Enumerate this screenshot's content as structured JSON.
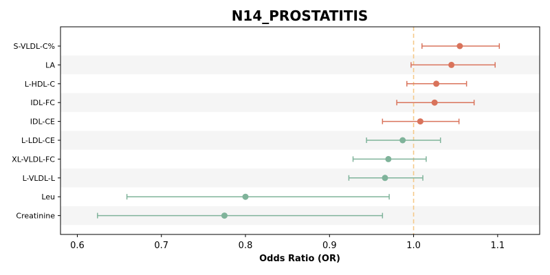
{
  "chart_data": {
    "type": "forest",
    "title": "N14_PROSTATITIS",
    "xlabel": "Odds Ratio (OR)",
    "xlim": [
      0.58,
      1.15
    ],
    "xticks": [
      0.6,
      0.7,
      0.8,
      0.9,
      1.0,
      1.1
    ],
    "xtick_labels": [
      "0.6",
      "0.7",
      "0.8",
      "0.9",
      "1.0",
      "1.1"
    ],
    "reference_line": 1.0,
    "colors": {
      "positive": "#d9735b",
      "negative": "#7fb39a",
      "reference": "#f5c98a",
      "band": "#f5f5f5"
    },
    "rows": [
      {
        "label": "S-VLDL-C%",
        "or": 1.055,
        "lo": 1.01,
        "hi": 1.102
      },
      {
        "label": "LA",
        "or": 1.045,
        "lo": 0.997,
        "hi": 1.097
      },
      {
        "label": "L-HDL-C",
        "or": 1.027,
        "lo": 0.992,
        "hi": 1.063
      },
      {
        "label": "IDL-FC",
        "or": 1.025,
        "lo": 0.98,
        "hi": 1.072
      },
      {
        "label": "IDL-CE",
        "or": 1.008,
        "lo": 0.963,
        "hi": 1.054
      },
      {
        "label": "L-LDL-CE",
        "or": 0.987,
        "lo": 0.944,
        "hi": 1.032
      },
      {
        "label": "XL-VLDL-FC",
        "or": 0.97,
        "lo": 0.928,
        "hi": 1.015
      },
      {
        "label": "L-VLDL-L",
        "or": 0.966,
        "lo": 0.923,
        "hi": 1.011
      },
      {
        "label": "Leu",
        "or": 0.8,
        "lo": 0.659,
        "hi": 0.971
      },
      {
        "label": "Creatinine",
        "or": 0.775,
        "lo": 0.624,
        "hi": 0.963
      }
    ]
  }
}
